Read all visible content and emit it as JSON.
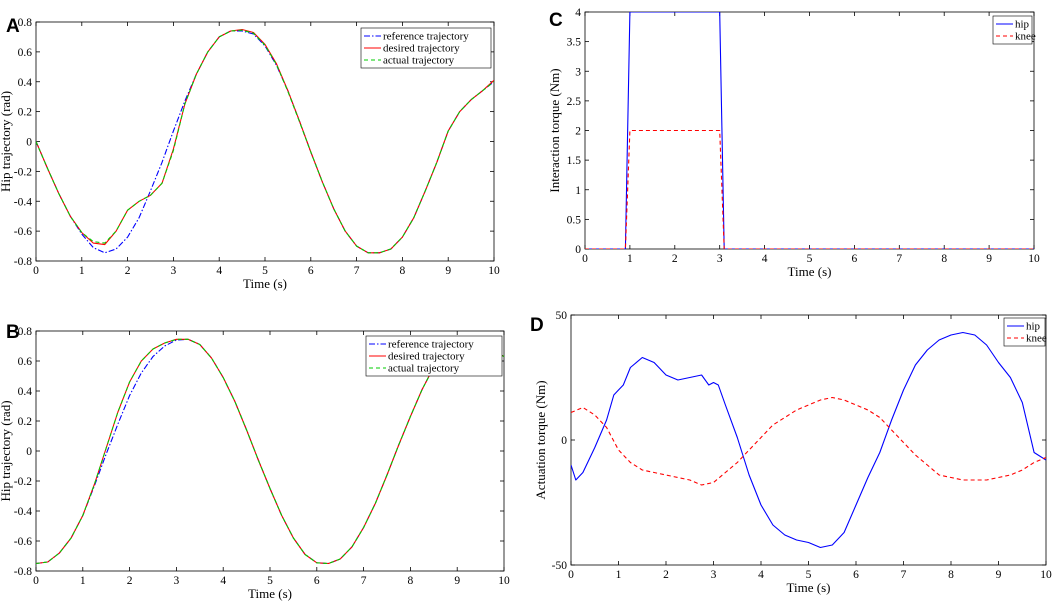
{
  "chart_data": [
    {
      "panel": "A",
      "type": "line",
      "xlabel": "Time (s)",
      "ylabel": "Hip trajectory (rad)",
      "xlim": [
        0,
        10
      ],
      "ylim": [
        -0.8,
        0.8
      ],
      "xticks": [
        0,
        1,
        2,
        3,
        4,
        5,
        6,
        7,
        8,
        9,
        10
      ],
      "yticks": [
        -0.8,
        -0.6,
        -0.4,
        -0.2,
        0,
        0.2,
        0.4,
        0.6,
        0.8
      ],
      "legend": "top-right",
      "series": [
        {
          "name": "reference trajectory",
          "color": "#0000ff",
          "dash": "dashdot",
          "x": [
            0,
            0.25,
            0.5,
            0.75,
            1,
            1.25,
            1.5,
            1.75,
            2,
            2.25,
            2.5,
            2.75,
            3,
            3.25,
            3.5,
            3.75,
            4,
            4.25,
            4.5,
            4.75,
            5,
            5.25,
            5.5,
            5.75,
            6,
            6.25,
            6.5,
            6.75,
            7,
            7.25,
            7.5,
            7.75,
            8,
            8.25,
            8.5,
            8.75,
            9,
            9.25,
            9.5,
            9.75,
            10
          ],
          "y": [
            0,
            -0.18,
            -0.35,
            -0.5,
            -0.62,
            -0.71,
            -0.745,
            -0.72,
            -0.64,
            -0.51,
            -0.33,
            -0.14,
            0.07,
            0.27,
            0.45,
            0.6,
            0.7,
            0.74,
            0.74,
            0.72,
            0.64,
            0.51,
            0.34,
            0.14,
            -0.07,
            -0.27,
            -0.45,
            -0.6,
            -0.7,
            -0.745,
            -0.745,
            -0.72,
            -0.64,
            -0.51,
            -0.33,
            -0.14,
            0.07,
            0.2,
            0.28,
            0.34,
            0.4
          ]
        },
        {
          "name": "desired trajectory",
          "color": "#ff0000",
          "dash": "solid",
          "x": [
            0,
            0.25,
            0.5,
            0.75,
            1,
            1.25,
            1.5,
            1.75,
            2,
            2.25,
            2.5,
            2.75,
            3,
            3.25,
            3.5,
            3.75,
            4,
            4.25,
            4.5,
            4.75,
            5,
            5.25,
            5.5,
            5.75,
            6,
            6.25,
            6.5,
            6.75,
            7,
            7.25,
            7.5,
            7.75,
            8,
            8.25,
            8.5,
            8.75,
            9,
            9.25,
            9.5,
            9.75,
            10
          ],
          "y": [
            0,
            -0.18,
            -0.35,
            -0.5,
            -0.61,
            -0.68,
            -0.69,
            -0.6,
            -0.46,
            -0.4,
            -0.36,
            -0.28,
            -0.05,
            0.25,
            0.45,
            0.6,
            0.7,
            0.74,
            0.75,
            0.73,
            0.65,
            0.52,
            0.34,
            0.14,
            -0.07,
            -0.27,
            -0.45,
            -0.6,
            -0.7,
            -0.745,
            -0.745,
            -0.72,
            -0.64,
            -0.51,
            -0.33,
            -0.14,
            0.07,
            0.2,
            0.28,
            0.34,
            0.41
          ]
        },
        {
          "name": "actual trajectory",
          "color": "#00cc00",
          "dash": "dashed",
          "x": [
            0,
            0.25,
            0.5,
            0.75,
            1,
            1.25,
            1.5,
            1.75,
            2,
            2.25,
            2.5,
            2.75,
            3,
            3.25,
            3.5,
            3.75,
            4,
            4.25,
            4.5,
            4.75,
            5,
            5.25,
            5.5,
            5.75,
            6,
            6.25,
            6.5,
            6.75,
            7,
            7.25,
            7.5,
            7.75,
            8,
            8.25,
            8.5,
            8.75,
            9,
            9.25,
            9.5,
            9.75,
            10
          ],
          "y": [
            0,
            -0.18,
            -0.35,
            -0.5,
            -0.61,
            -0.67,
            -0.68,
            -0.6,
            -0.46,
            -0.4,
            -0.36,
            -0.28,
            -0.06,
            0.25,
            0.45,
            0.6,
            0.7,
            0.74,
            0.745,
            0.725,
            0.645,
            0.515,
            0.335,
            0.135,
            -0.07,
            -0.27,
            -0.45,
            -0.6,
            -0.7,
            -0.745,
            -0.745,
            -0.72,
            -0.64,
            -0.51,
            -0.33,
            -0.14,
            0.07,
            0.2,
            0.28,
            0.34,
            0.4
          ]
        }
      ]
    },
    {
      "panel": "B",
      "type": "line",
      "xlabel": "Time (s)",
      "ylabel": "Hip trajectory (rad)",
      "xlim": [
        0,
        10
      ],
      "ylim": [
        -0.8,
        0.8
      ],
      "xticks": [
        0,
        1,
        2,
        3,
        4,
        5,
        6,
        7,
        8,
        9,
        10
      ],
      "yticks": [
        -0.8,
        -0.6,
        -0.4,
        -0.2,
        0,
        0.2,
        0.4,
        0.6,
        0.8
      ],
      "legend": "top-right",
      "series": [
        {
          "name": "reference trajectory",
          "color": "#0000ff",
          "dash": "dashdot",
          "x": [
            0,
            0.25,
            0.5,
            0.75,
            1,
            1.25,
            1.5,
            1.75,
            2,
            2.25,
            2.5,
            2.75,
            3,
            3.25,
            3.5,
            3.75,
            4,
            4.25,
            4.5,
            4.75,
            5,
            5.25,
            5.5,
            5.75,
            6,
            6.25,
            6.5,
            6.75,
            7,
            7.25,
            7.5,
            7.75,
            8,
            8.25,
            8.5,
            8.75,
            9,
            9.25,
            9.5,
            9.75,
            10
          ],
          "y": [
            -0.75,
            -0.74,
            -0.68,
            -0.58,
            -0.43,
            -0.23,
            -0.02,
            0.18,
            0.37,
            0.52,
            0.63,
            0.7,
            0.74,
            0.745,
            0.71,
            0.62,
            0.49,
            0.33,
            0.14,
            -0.06,
            -0.25,
            -0.43,
            -0.58,
            -0.69,
            -0.745,
            -0.75,
            -0.72,
            -0.64,
            -0.51,
            -0.35,
            -0.16,
            0.04,
            0.23,
            0.41,
            0.56,
            0.67,
            0.72,
            0.73,
            0.7,
            0.67,
            0.63
          ]
        },
        {
          "name": "desired trajectory",
          "color": "#ff0000",
          "dash": "solid",
          "x": [
            0,
            0.25,
            0.5,
            0.75,
            1,
            1.25,
            1.5,
            1.75,
            2,
            2.25,
            2.5,
            2.75,
            3,
            3.25,
            3.5,
            3.75,
            4,
            4.25,
            4.5,
            4.75,
            5,
            5.25,
            5.5,
            5.75,
            6,
            6.25,
            6.5,
            6.75,
            7,
            7.25,
            7.5,
            7.75,
            8,
            8.25,
            8.5,
            8.75,
            9,
            9.25,
            9.5,
            9.75,
            10
          ],
          "y": [
            -0.75,
            -0.74,
            -0.68,
            -0.58,
            -0.43,
            -0.22,
            0.02,
            0.26,
            0.46,
            0.6,
            0.68,
            0.72,
            0.745,
            0.745,
            0.71,
            0.62,
            0.49,
            0.33,
            0.14,
            -0.06,
            -0.25,
            -0.43,
            -0.58,
            -0.69,
            -0.745,
            -0.75,
            -0.72,
            -0.64,
            -0.51,
            -0.35,
            -0.16,
            0.04,
            0.23,
            0.41,
            0.56,
            0.67,
            0.72,
            0.73,
            0.7,
            0.67,
            0.63
          ]
        },
        {
          "name": "actual trajectory",
          "color": "#00cc00",
          "dash": "dashed",
          "x": [
            0,
            0.25,
            0.5,
            0.75,
            1,
            1.25,
            1.5,
            1.75,
            2,
            2.25,
            2.5,
            2.75,
            3,
            3.25,
            3.5,
            3.75,
            4,
            4.25,
            4.5,
            4.75,
            5,
            5.25,
            5.5,
            5.75,
            6,
            6.25,
            6.5,
            6.75,
            7,
            7.25,
            7.5,
            7.75,
            8,
            8.25,
            8.5,
            8.75,
            9,
            9.25,
            9.5,
            9.75,
            10
          ],
          "y": [
            -0.75,
            -0.74,
            -0.68,
            -0.58,
            -0.43,
            -0.22,
            0.02,
            0.26,
            0.46,
            0.6,
            0.68,
            0.72,
            0.745,
            0.745,
            0.71,
            0.62,
            0.49,
            0.33,
            0.14,
            -0.06,
            -0.25,
            -0.43,
            -0.58,
            -0.69,
            -0.745,
            -0.75,
            -0.72,
            -0.64,
            -0.51,
            -0.35,
            -0.16,
            0.04,
            0.23,
            0.41,
            0.56,
            0.67,
            0.72,
            0.73,
            0.7,
            0.67,
            0.63
          ]
        }
      ]
    },
    {
      "panel": "C",
      "type": "line",
      "xlabel": "Time (s)",
      "ylabel": "Interaction torque (Nm)",
      "xlim": [
        0,
        10
      ],
      "ylim": [
        0,
        4
      ],
      "xticks": [
        0,
        1,
        2,
        3,
        4,
        5,
        6,
        7,
        8,
        9,
        10
      ],
      "yticks": [
        0,
        0.5,
        1,
        1.5,
        2,
        2.5,
        3,
        3.5,
        4
      ],
      "legend": "top-right",
      "series": [
        {
          "name": "hip",
          "color": "#0000ff",
          "dash": "solid",
          "x": [
            0,
            0.9,
            1.0,
            3.0,
            3.1,
            10
          ],
          "y": [
            0,
            0,
            4,
            4,
            0,
            0
          ]
        },
        {
          "name": "knee",
          "color": "#ff0000",
          "dash": "dashed",
          "x": [
            0,
            0.9,
            1.0,
            3.0,
            3.1,
            10
          ],
          "y": [
            0,
            0,
            2,
            2,
            0,
            0
          ]
        }
      ]
    },
    {
      "panel": "D",
      "type": "line",
      "xlabel": "Time (s)",
      "ylabel": "Actuation torque (Nm)",
      "xlim": [
        0,
        10
      ],
      "ylim": [
        -50,
        50
      ],
      "xticks": [
        0,
        1,
        2,
        3,
        4,
        5,
        6,
        7,
        8,
        9,
        10
      ],
      "yticks": [
        -50,
        0,
        50
      ],
      "legend": "top-right",
      "series": [
        {
          "name": "hip",
          "color": "#0000ff",
          "dash": "solid",
          "x": [
            0,
            0.1,
            0.25,
            0.5,
            0.75,
            0.9,
            1.0,
            1.1,
            1.25,
            1.5,
            1.75,
            2.0,
            2.25,
            2.5,
            2.75,
            2.9,
            3.0,
            3.1,
            3.25,
            3.5,
            3.75,
            4.0,
            4.25,
            4.5,
            4.75,
            5.0,
            5.25,
            5.5,
            5.75,
            6.0,
            6.25,
            6.5,
            6.75,
            7.0,
            7.25,
            7.5,
            7.75,
            8.0,
            8.25,
            8.5,
            8.75,
            9.0,
            9.25,
            9.5,
            9.75,
            10
          ],
          "y": [
            -10,
            -16,
            -13,
            -3,
            8,
            18,
            20,
            22,
            29,
            33,
            31,
            26,
            24,
            25,
            26,
            22,
            23,
            22,
            14,
            1,
            -14,
            -26,
            -34,
            -38,
            -40,
            -41,
            -43,
            -42,
            -37,
            -26,
            -15,
            -5,
            8,
            20,
            30,
            36,
            40,
            42,
            43,
            42,
            38,
            31,
            25,
            15,
            -5,
            -8
          ]
        },
        {
          "name": "knee",
          "color": "#ff0000",
          "dash": "dashed",
          "x": [
            0,
            0.25,
            0.5,
            0.75,
            1.0,
            1.25,
            1.5,
            1.75,
            2.0,
            2.25,
            2.5,
            2.75,
            3.0,
            3.25,
            3.5,
            3.75,
            4.0,
            4.25,
            4.5,
            4.75,
            5.0,
            5.25,
            5.5,
            5.75,
            6.0,
            6.25,
            6.5,
            6.75,
            7.0,
            7.25,
            7.5,
            7.75,
            8.0,
            8.25,
            8.5,
            8.75,
            9.0,
            9.25,
            9.5,
            9.75,
            10
          ],
          "y": [
            11,
            13,
            10,
            5,
            -4,
            -9,
            -12,
            -13,
            -14,
            -15,
            -16,
            -18,
            -17,
            -13,
            -9,
            -4,
            1,
            6,
            9,
            12,
            14,
            16,
            17,
            16,
            14,
            12,
            9,
            4,
            -1,
            -6,
            -10,
            -14,
            -15,
            -16,
            -16,
            -16,
            -15,
            -14,
            -12,
            -9,
            -7
          ]
        }
      ]
    }
  ]
}
